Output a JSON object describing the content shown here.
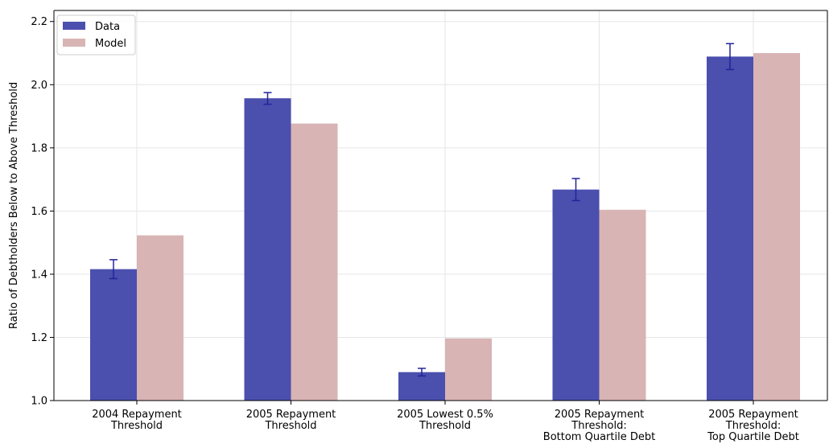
{
  "chart_data": {
    "type": "bar",
    "title": "",
    "xlabel": "",
    "ylabel": "Ratio of Debtholders Below to Above Threshold",
    "categories": [
      [
        "2004 Repayment",
        "Threshold"
      ],
      [
        "2005 Repayment",
        "Threshold"
      ],
      [
        "2005 Lowest 0.5%",
        "Threshold"
      ],
      [
        "2005 Repayment",
        "Threshold:",
        "Bottom Quartile Debt"
      ],
      [
        "2005 Repayment",
        "Threshold:",
        "Top Quartile Debt"
      ]
    ],
    "series": [
      {
        "name": "Data",
        "color": "#4b4fad",
        "values": [
          1.416,
          1.957,
          1.09,
          1.668,
          2.089
        ],
        "error_low": [
          1.386,
          1.938,
          1.078,
          1.633,
          2.048
        ],
        "error_high": [
          1.446,
          1.975,
          1.102,
          1.703,
          2.13
        ],
        "error_color": "#23239a"
      },
      {
        "name": "Model",
        "color": "#d8b4b4",
        "values": [
          1.523,
          1.877,
          1.197,
          1.604,
          2.1
        ]
      }
    ],
    "ylim": [
      1.0,
      2.235
    ],
    "yticks": [
      "1.0",
      "1.2",
      "1.4",
      "1.6",
      "1.8",
      "2.0",
      "2.2"
    ],
    "grid": true,
    "legend_position": "top-left"
  }
}
